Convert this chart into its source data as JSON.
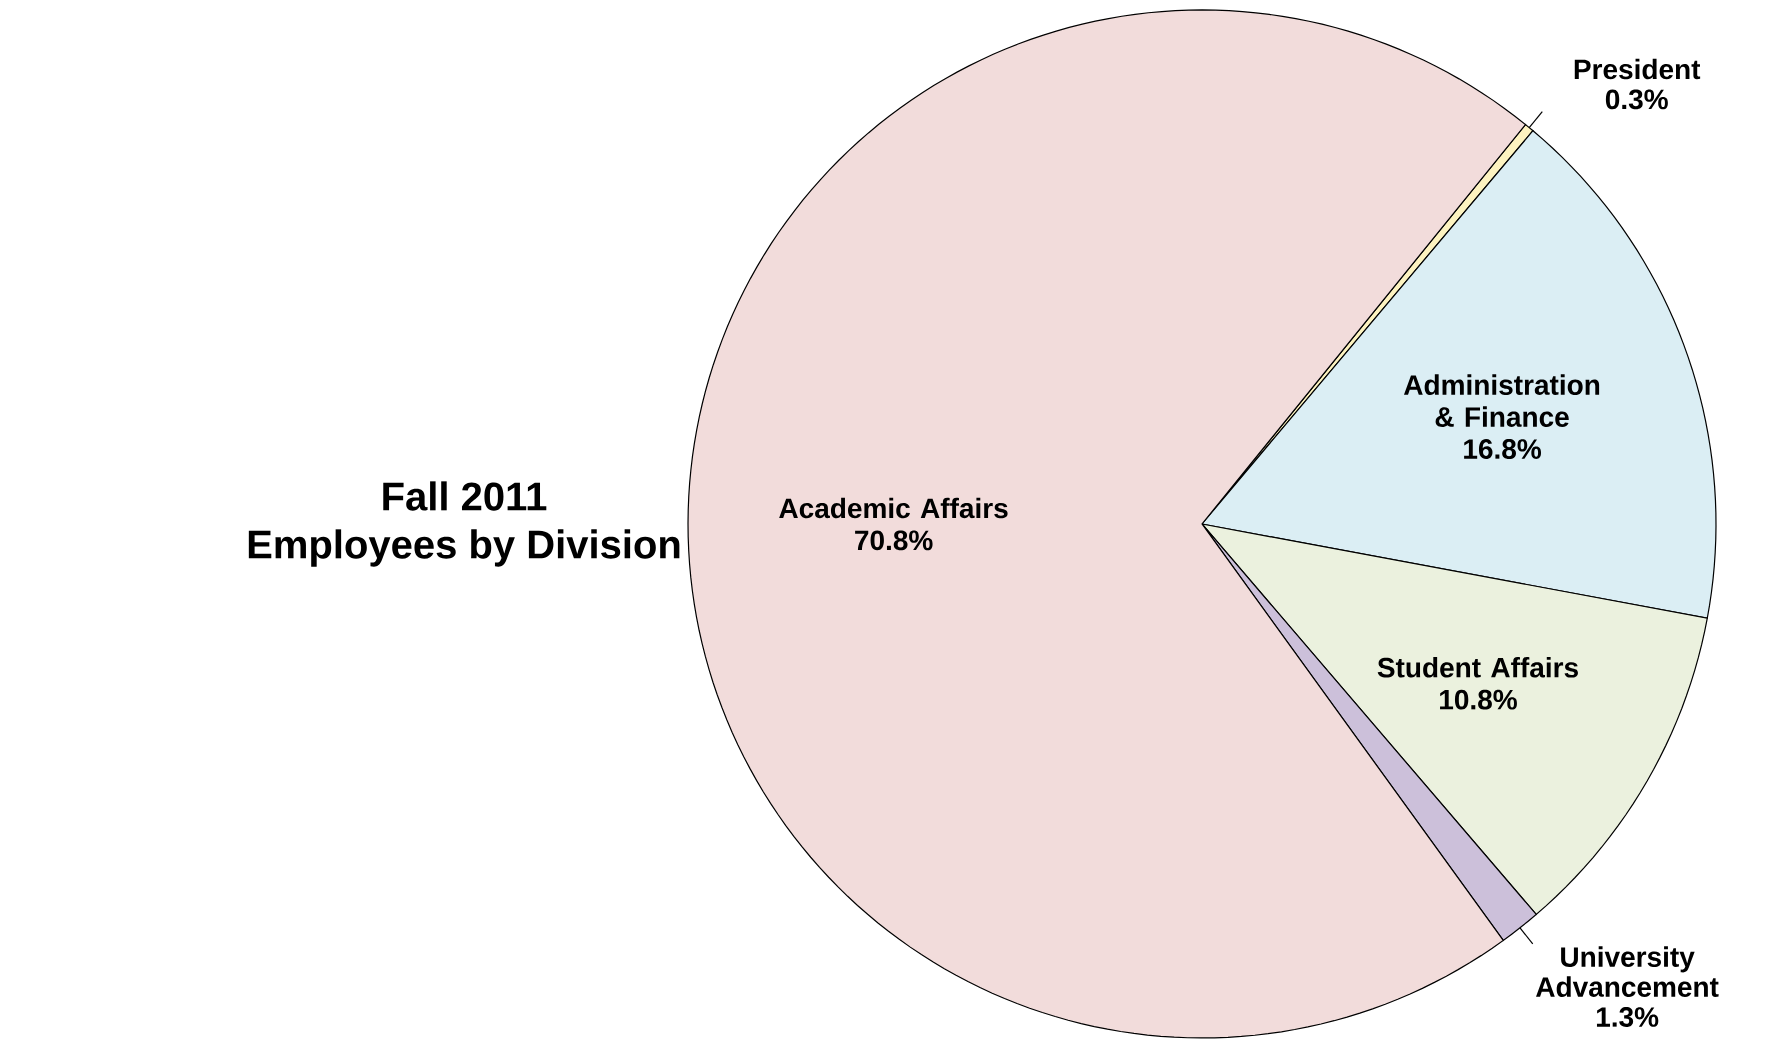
{
  "chart_data": {
    "type": "pie",
    "title": "Fall 2011",
    "subtitle": "Employees by Division",
    "categories": [
      "President",
      "Administration & Finance",
      "Student Affairs",
      "University Advancement",
      "Academic Affairs"
    ],
    "values": [
      0.3,
      16.8,
      10.8,
      1.3,
      70.8
    ],
    "value_labels": [
      "0.3%",
      "16.8%",
      "10.8%",
      "1.3%",
      "70.8%"
    ],
    "colors": [
      "#fdf3c0",
      "#dbeef4",
      "#ebf1de",
      "#ccc0da",
      "#f2dcdb"
    ]
  }
}
